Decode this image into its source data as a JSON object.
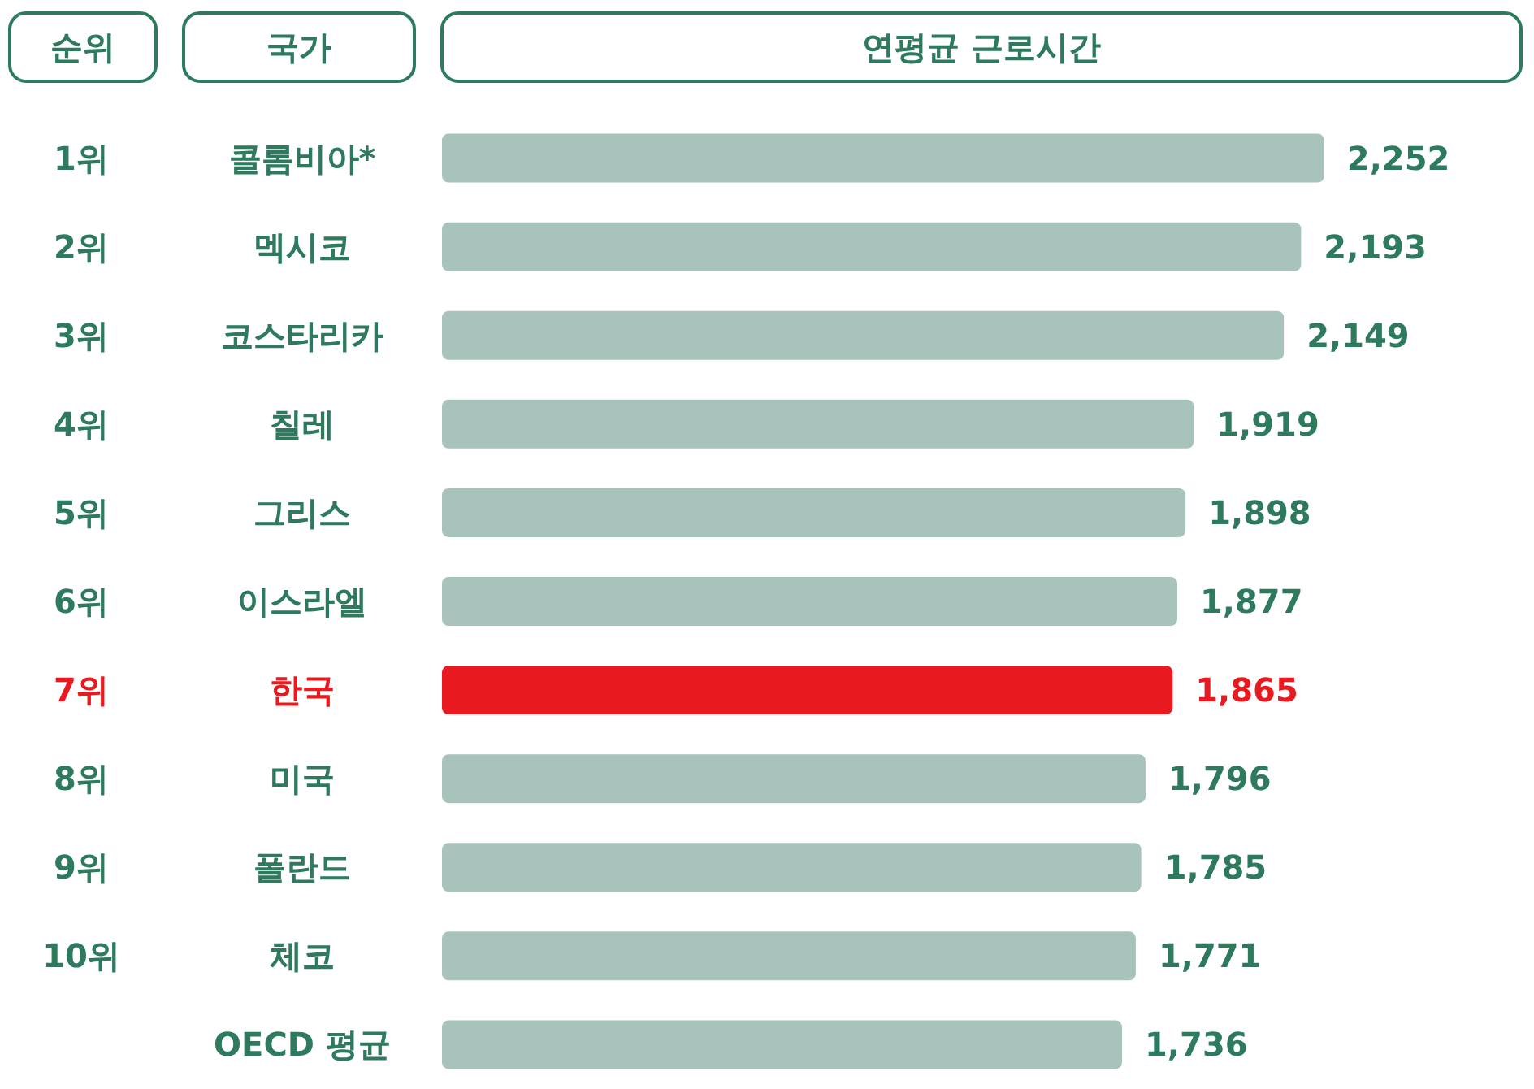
{
  "chart_data": {
    "type": "bar",
    "orientation": "horizontal",
    "xlabel": "연평균 근로시간",
    "ylabel": "국가",
    "categories": [
      "콜롬비아*",
      "멕시코",
      "코스타리카",
      "칠레",
      "그리스",
      "이스라엘",
      "한국",
      "미국",
      "폴란드",
      "체코",
      "OECD 평균"
    ],
    "values": [
      2252,
      2193,
      2149,
      1919,
      1898,
      1877,
      1865,
      1796,
      1785,
      1771,
      1736
    ],
    "value_labels": [
      "2,252",
      "2,193",
      "2,149",
      "1,919",
      "1,898",
      "1,877",
      "1,865",
      "1,796",
      "1,785",
      "1,771",
      "1,736"
    ],
    "colors": [
      "#a8c3bb",
      "#a8c3bb",
      "#a8c3bb",
      "#a8c3bb",
      "#a8c3bb",
      "#a8c3bb",
      "#e8191f",
      "#a8c3bb",
      "#a8c3bb",
      "#a8c3bb",
      "#a8c3bb"
    ],
    "tick_labels": "y",
    "annotations": [
      "순위",
      "1위",
      "2위",
      "3위",
      "4위",
      "5위",
      "6위",
      "7위",
      "8위",
      "9위",
      "10위"
    ]
  }
}
